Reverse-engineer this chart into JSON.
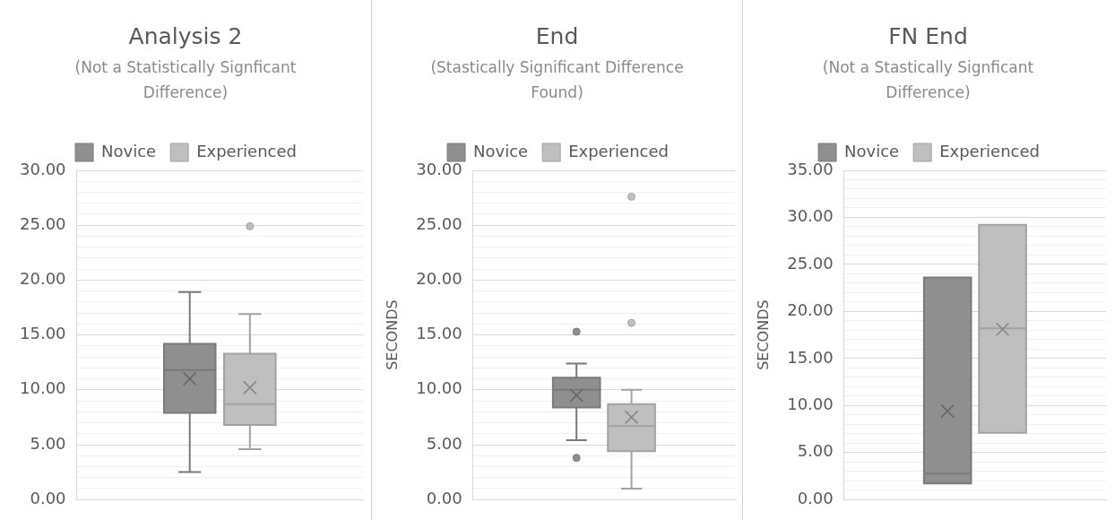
{
  "chart_data": [
    {
      "type": "box",
      "title": "Analysis 2",
      "subtitle": "(Not a Statistically Signficant Difference)",
      "categories": [
        null
      ],
      "legend": "top",
      "grid": "y",
      "tick_labels": "y",
      "ylim": [
        0,
        30
      ],
      "yticks": [
        {
          "value": 0,
          "label": "0.00"
        },
        {
          "value": 1,
          "label": null
        },
        {
          "value": 2,
          "label": null
        },
        {
          "value": 3,
          "label": null
        },
        {
          "value": 4,
          "label": null
        },
        {
          "value": 5,
          "label": "5.00"
        },
        {
          "value": 6,
          "label": null
        },
        {
          "value": 7,
          "label": null
        },
        {
          "value": 8,
          "label": null
        },
        {
          "value": 9,
          "label": null
        },
        {
          "value": 10,
          "label": "10.00"
        },
        {
          "value": 11,
          "label": null
        },
        {
          "value": 12,
          "label": null
        },
        {
          "value": 13,
          "label": null
        },
        {
          "value": 14,
          "label": null
        },
        {
          "value": 15,
          "label": "15.00"
        },
        {
          "value": 16,
          "label": null
        },
        {
          "value": 17,
          "label": null
        },
        {
          "value": 18,
          "label": null
        },
        {
          "value": 19,
          "label": null
        },
        {
          "value": 20,
          "label": "20.00"
        },
        {
          "value": 21,
          "label": null
        },
        {
          "value": 22,
          "label": null
        },
        {
          "value": 23,
          "label": null
        },
        {
          "value": 24,
          "label": null
        },
        {
          "value": 25,
          "label": "25.00"
        },
        {
          "value": 26,
          "label": null
        },
        {
          "value": 27,
          "label": null
        },
        {
          "value": 28,
          "label": null
        },
        {
          "value": 29,
          "label": null
        },
        {
          "value": 30,
          "label": "30.00"
        }
      ],
      "series": [
        {
          "name": "Novice",
          "color": "#8f8f8f",
          "boxes": [
            {
              "low": 2.5,
              "q1": 7.9,
              "median": 11.8,
              "q3": 14.2,
              "high": 18.9,
              "mean": 11.0
            }
          ]
        },
        {
          "name": "Experienced",
          "color": "#bfbfbf",
          "boxes": [
            {
              "low": 4.6,
              "q1": 6.8,
              "median": 8.7,
              "q3": 13.3,
              "high": 16.9,
              "mean": 10.2,
              "outliers": [
                24.9
              ]
            }
          ]
        }
      ]
    },
    {
      "type": "box",
      "title": "End",
      "subtitle": "(Stastically Significant Difference Found)",
      "ylabel": "SECONDS",
      "categories": [
        null
      ],
      "legend": "top",
      "grid": "y",
      "tick_labels": "y",
      "ylim": [
        0,
        30
      ],
      "yticks": [
        {
          "value": 0,
          "label": "0.00"
        },
        {
          "value": 1,
          "label": null
        },
        {
          "value": 2,
          "label": null
        },
        {
          "value": 3,
          "label": null
        },
        {
          "value": 4,
          "label": null
        },
        {
          "value": 5,
          "label": "5.00"
        },
        {
          "value": 6,
          "label": null
        },
        {
          "value": 7,
          "label": null
        },
        {
          "value": 8,
          "label": null
        },
        {
          "value": 9,
          "label": null
        },
        {
          "value": 10,
          "label": "10.00"
        },
        {
          "value": 11,
          "label": null
        },
        {
          "value": 12,
          "label": null
        },
        {
          "value": 13,
          "label": null
        },
        {
          "value": 14,
          "label": null
        },
        {
          "value": 15,
          "label": "15.00"
        },
        {
          "value": 16,
          "label": null
        },
        {
          "value": 17,
          "label": null
        },
        {
          "value": 18,
          "label": null
        },
        {
          "value": 19,
          "label": null
        },
        {
          "value": 20,
          "label": "20.00"
        },
        {
          "value": 21,
          "label": null
        },
        {
          "value": 22,
          "label": null
        },
        {
          "value": 23,
          "label": null
        },
        {
          "value": 24,
          "label": null
        },
        {
          "value": 25,
          "label": "25.00"
        },
        {
          "value": 26,
          "label": null
        },
        {
          "value": 27,
          "label": null
        },
        {
          "value": 28,
          "label": null
        },
        {
          "value": 29,
          "label": null
        },
        {
          "value": 30,
          "label": "30.00"
        }
      ],
      "series": [
        {
          "name": "Novice",
          "color": "#8f8f8f",
          "boxes": [
            {
              "low": 5.4,
              "q1": 8.4,
              "median": 10.0,
              "q3": 11.1,
              "high": 12.4,
              "mean": 9.5,
              "outliers": [
                15.3,
                3.8
              ]
            }
          ]
        },
        {
          "name": "Experienced",
          "color": "#bfbfbf",
          "boxes": [
            {
              "low": 1.0,
              "q1": 4.4,
              "median": 6.7,
              "q3": 8.7,
              "high": 10.0,
              "mean": 7.5,
              "outliers": [
                27.6,
                16.1
              ]
            }
          ]
        }
      ]
    },
    {
      "type": "box",
      "title": "FN End",
      "subtitle": "(Not a Stastically Signficant Difference)",
      "ylabel": "SECONDS",
      "categories": [
        null
      ],
      "legend": "top",
      "grid": "y",
      "tick_labels": "y",
      "ylim": [
        0,
        35
      ],
      "yticks": [
        {
          "value": 0,
          "label": "0.00"
        },
        {
          "value": 1,
          "label": null
        },
        {
          "value": 2,
          "label": null
        },
        {
          "value": 3,
          "label": null
        },
        {
          "value": 4,
          "label": null
        },
        {
          "value": 5,
          "label": "5.00"
        },
        {
          "value": 6,
          "label": null
        },
        {
          "value": 7,
          "label": null
        },
        {
          "value": 8,
          "label": null
        },
        {
          "value": 9,
          "label": null
        },
        {
          "value": 10,
          "label": "10.00"
        },
        {
          "value": 11,
          "label": null
        },
        {
          "value": 12,
          "label": null
        },
        {
          "value": 13,
          "label": null
        },
        {
          "value": 14,
          "label": null
        },
        {
          "value": 15,
          "label": "15.00"
        },
        {
          "value": 16,
          "label": null
        },
        {
          "value": 17,
          "label": null
        },
        {
          "value": 18,
          "label": null
        },
        {
          "value": 19,
          "label": null
        },
        {
          "value": 20,
          "label": "20.00"
        },
        {
          "value": 21,
          "label": null
        },
        {
          "value": 22,
          "label": null
        },
        {
          "value": 23,
          "label": null
        },
        {
          "value": 24,
          "label": null
        },
        {
          "value": 25,
          "label": "25.00"
        },
        {
          "value": 26,
          "label": null
        },
        {
          "value": 27,
          "label": null
        },
        {
          "value": 28,
          "label": null
        },
        {
          "value": 29,
          "label": null
        },
        {
          "value": 30,
          "label": "30.00"
        },
        {
          "value": 31,
          "label": null
        },
        {
          "value": 32,
          "label": null
        },
        {
          "value": 33,
          "label": null
        },
        {
          "value": 34,
          "label": null
        },
        {
          "value": 35,
          "label": "35.00"
        }
      ],
      "series": [
        {
          "name": "Novice",
          "color": "#8f8f8f",
          "boxes": [
            {
              "low": 1.7,
              "q1": 1.7,
              "median": 2.75,
              "q3": 23.6,
              "high": 23.6,
              "mean": 9.4
            }
          ]
        },
        {
          "name": "Experienced",
          "color": "#bfbfbf",
          "boxes": [
            {
              "low": 7.1,
              "q1": 7.1,
              "median": 18.2,
              "q3": 29.2,
              "high": 29.2,
              "mean": 18.1
            }
          ]
        }
      ]
    }
  ]
}
